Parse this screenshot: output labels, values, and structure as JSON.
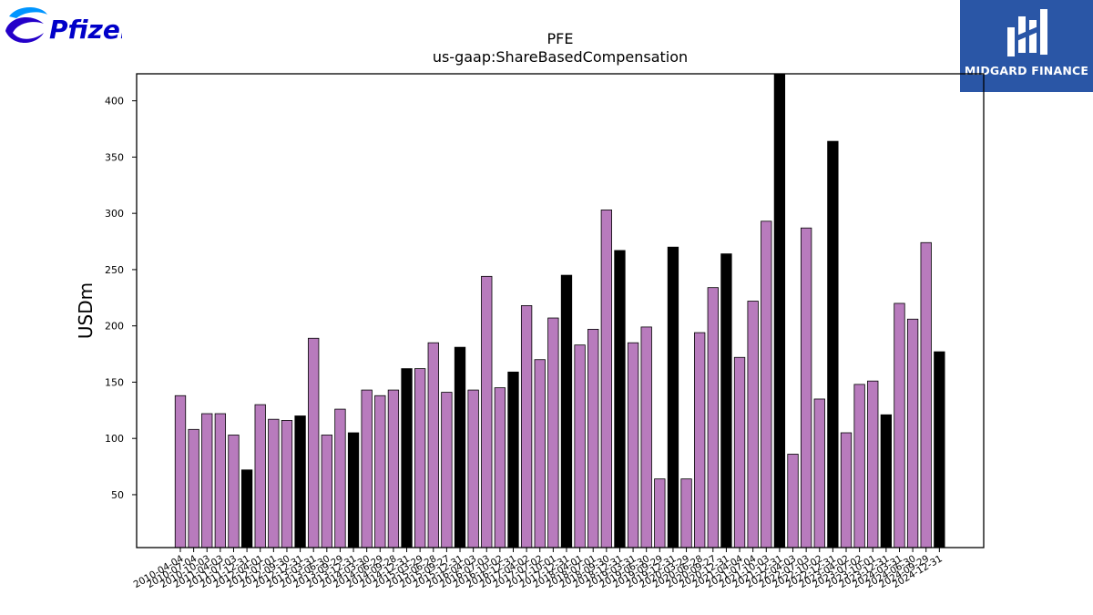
{
  "logos": {
    "left": {
      "text": "Pfizer",
      "icon": "pfizer-logo-icon",
      "color": "#0000c9"
    },
    "right": {
      "text": "MIDGARD FINANCE",
      "icon": "midgard-logo-icon",
      "color": "#2a56a6"
    }
  },
  "chart_data": {
    "type": "bar",
    "title": "PFE",
    "subtitle": "us-gaap:ShareBasedCompensation",
    "xlabel": "",
    "ylabel": "USDm",
    "ylim": [
      3,
      424
    ],
    "yticks": [
      50,
      100,
      150,
      200,
      250,
      300,
      350,
      400
    ],
    "grid": false,
    "colors": {
      "quarter": "#b87bbd",
      "annual": "#000000",
      "edge": "#000000"
    },
    "categories": [
      "2010-04-04",
      "2010-07-04",
      "2010-10-03",
      "2011-04-03",
      "2011-07-03",
      "2011-12-31",
      "2012-04-01",
      "2012-07-01",
      "2012-09-30",
      "2012-12-31",
      "2013-03-31",
      "2013-06-30",
      "2013-09-29",
      "2013-12-31",
      "2014-03-30",
      "2014-06-29",
      "2014-09-28",
      "2014-12-31",
      "2015-03-29",
      "2015-06-28",
      "2015-09-27",
      "2015-12-31",
      "2016-04-03",
      "2016-07-03",
      "2016-10-02",
      "2016-12-31",
      "2017-04-02",
      "2017-07-02",
      "2017-10-01",
      "2017-12-31",
      "2018-04-01",
      "2018-07-01",
      "2018-09-30",
      "2018-12-31",
      "2019-03-31",
      "2019-06-30",
      "2019-09-29",
      "2019-12-31",
      "2020-03-29",
      "2020-06-28",
      "2020-09-27",
      "2020-12-31",
      "2021-04-04",
      "2021-07-04",
      "2021-10-03",
      "2021-12-31",
      "2022-04-03",
      "2022-07-03",
      "2022-10-02",
      "2022-12-31",
      "2023-04-02",
      "2023-07-02",
      "2023-10-01",
      "2023-12-31",
      "2024-03-31",
      "2024-06-30",
      "2024-09-29",
      "2024-12-31"
    ],
    "values": [
      138,
      108,
      122,
      122,
      103,
      72,
      130,
      117,
      116,
      120,
      189,
      103,
      126,
      105,
      143,
      138,
      143,
      162,
      162,
      185,
      141,
      181,
      143,
      244,
      145,
      159,
      218,
      170,
      207,
      245,
      183,
      197,
      303,
      267,
      185,
      199,
      64,
      270,
      64,
      194,
      234,
      264,
      172,
      222,
      293,
      424,
      86,
      287,
      135,
      364,
      105,
      148,
      151,
      121,
      220,
      206,
      274,
      177
    ],
    "annual": [
      false,
      false,
      false,
      false,
      false,
      true,
      false,
      false,
      false,
      true,
      false,
      false,
      false,
      true,
      false,
      false,
      false,
      true,
      false,
      false,
      false,
      true,
      false,
      false,
      false,
      true,
      false,
      false,
      false,
      true,
      false,
      false,
      false,
      true,
      false,
      false,
      false,
      true,
      false,
      false,
      false,
      true,
      false,
      false,
      false,
      true,
      false,
      false,
      false,
      true,
      false,
      false,
      false,
      true,
      false,
      false,
      false,
      true
    ]
  }
}
